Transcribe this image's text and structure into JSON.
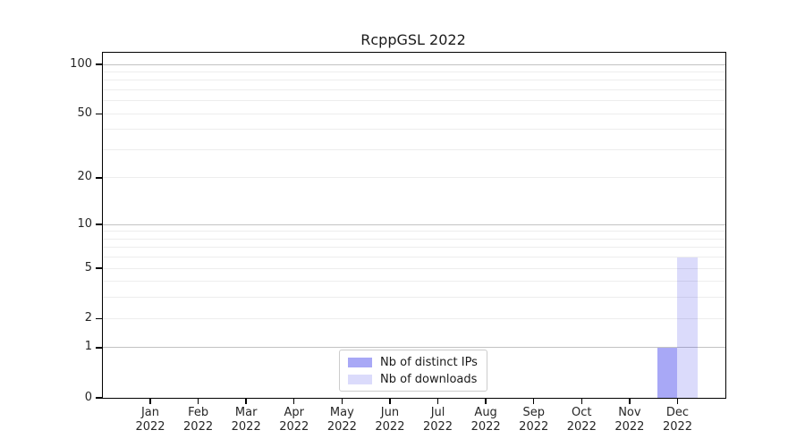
{
  "chart_data": {
    "type": "bar",
    "title": "RcppGSL 2022",
    "x_tick_labels": [
      [
        "Jan",
        "2022"
      ],
      [
        "Feb",
        "2022"
      ],
      [
        "Mar",
        "2022"
      ],
      [
        "Apr",
        "2022"
      ],
      [
        "May",
        "2022"
      ],
      [
        "Jun",
        "2022"
      ],
      [
        "Jul",
        "2022"
      ],
      [
        "Aug",
        "2022"
      ],
      [
        "Sep",
        "2022"
      ],
      [
        "Oct",
        "2022"
      ],
      [
        "Nov",
        "2022"
      ],
      [
        "Dec",
        "2022"
      ]
    ],
    "series": [
      {
        "name": "Nb of distinct IPs",
        "key": "distinct-ips",
        "color": "rgba(0,0,230,0.34)",
        "values": [
          0,
          0,
          0,
          0,
          0,
          0,
          0,
          0,
          0,
          0,
          0,
          1
        ]
      },
      {
        "name": "Nb of downloads",
        "key": "downloads",
        "color": "rgba(0,0,230,0.14)",
        "values": [
          0,
          0,
          0,
          0,
          0,
          0,
          0,
          0,
          0,
          0,
          0,
          6
        ]
      }
    ],
    "y_scale": "log1p",
    "ylim": [
      0,
      118
    ],
    "y_tick_labels": [
      0,
      1,
      2,
      5,
      10,
      20,
      50,
      100
    ],
    "y_major_gridlines": [
      1,
      10,
      100
    ],
    "y_minor_gridlines": [
      2,
      3,
      4,
      5,
      6,
      7,
      8,
      9,
      20,
      30,
      40,
      50,
      60,
      70,
      80,
      90
    ],
    "grid": true,
    "legend_position": "inside-bottom-center",
    "colors": {
      "bar_distinct_ips": "#aaaaf6",
      "bar_downloads": "#dbdbfb",
      "major_grid": "#c3c3c3",
      "minor_grid": "#ededed",
      "axis": "#000000",
      "text": "#262626"
    }
  }
}
